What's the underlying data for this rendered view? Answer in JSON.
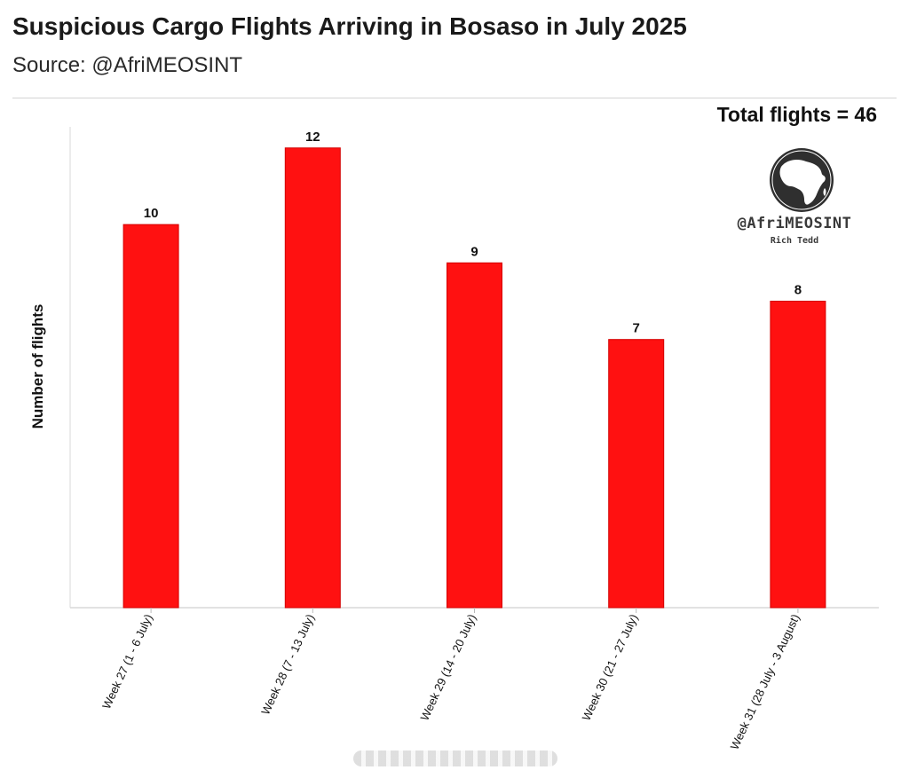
{
  "header": {
    "title": "Suspicious Cargo Flights Arriving in Bosaso in July 2025",
    "subtitle": "Source: @AfriMEOSINT"
  },
  "annotation": {
    "total": "Total flights = 46"
  },
  "watermark": {
    "handle": "@AfriMEOSINT",
    "author": "Rich Tedd",
    "icon": "africa-globe-icon"
  },
  "chart_data": {
    "type": "bar",
    "title": "Suspicious Cargo Flights Arriving in Bosaso in July 2025",
    "ylabel": "Number of flights",
    "xlabel": "",
    "categories": [
      "Week 27 (1 - 6 July)",
      "Week 28 (7 - 13 July)",
      "Week 29 (14 - 20 July)",
      "Week 30 (21 - 27 July)",
      "Week 31 (28 July - 3 August)"
    ],
    "values": [
      10,
      12,
      9,
      7,
      8
    ],
    "data_labels": [
      "10",
      "12",
      "9",
      "7",
      "8"
    ],
    "ylim": [
      0,
      12.55
    ],
    "bar_color": "#ff1111",
    "bar_edge_color": "#d40000",
    "grid": false,
    "y_ticks_shown": false
  }
}
